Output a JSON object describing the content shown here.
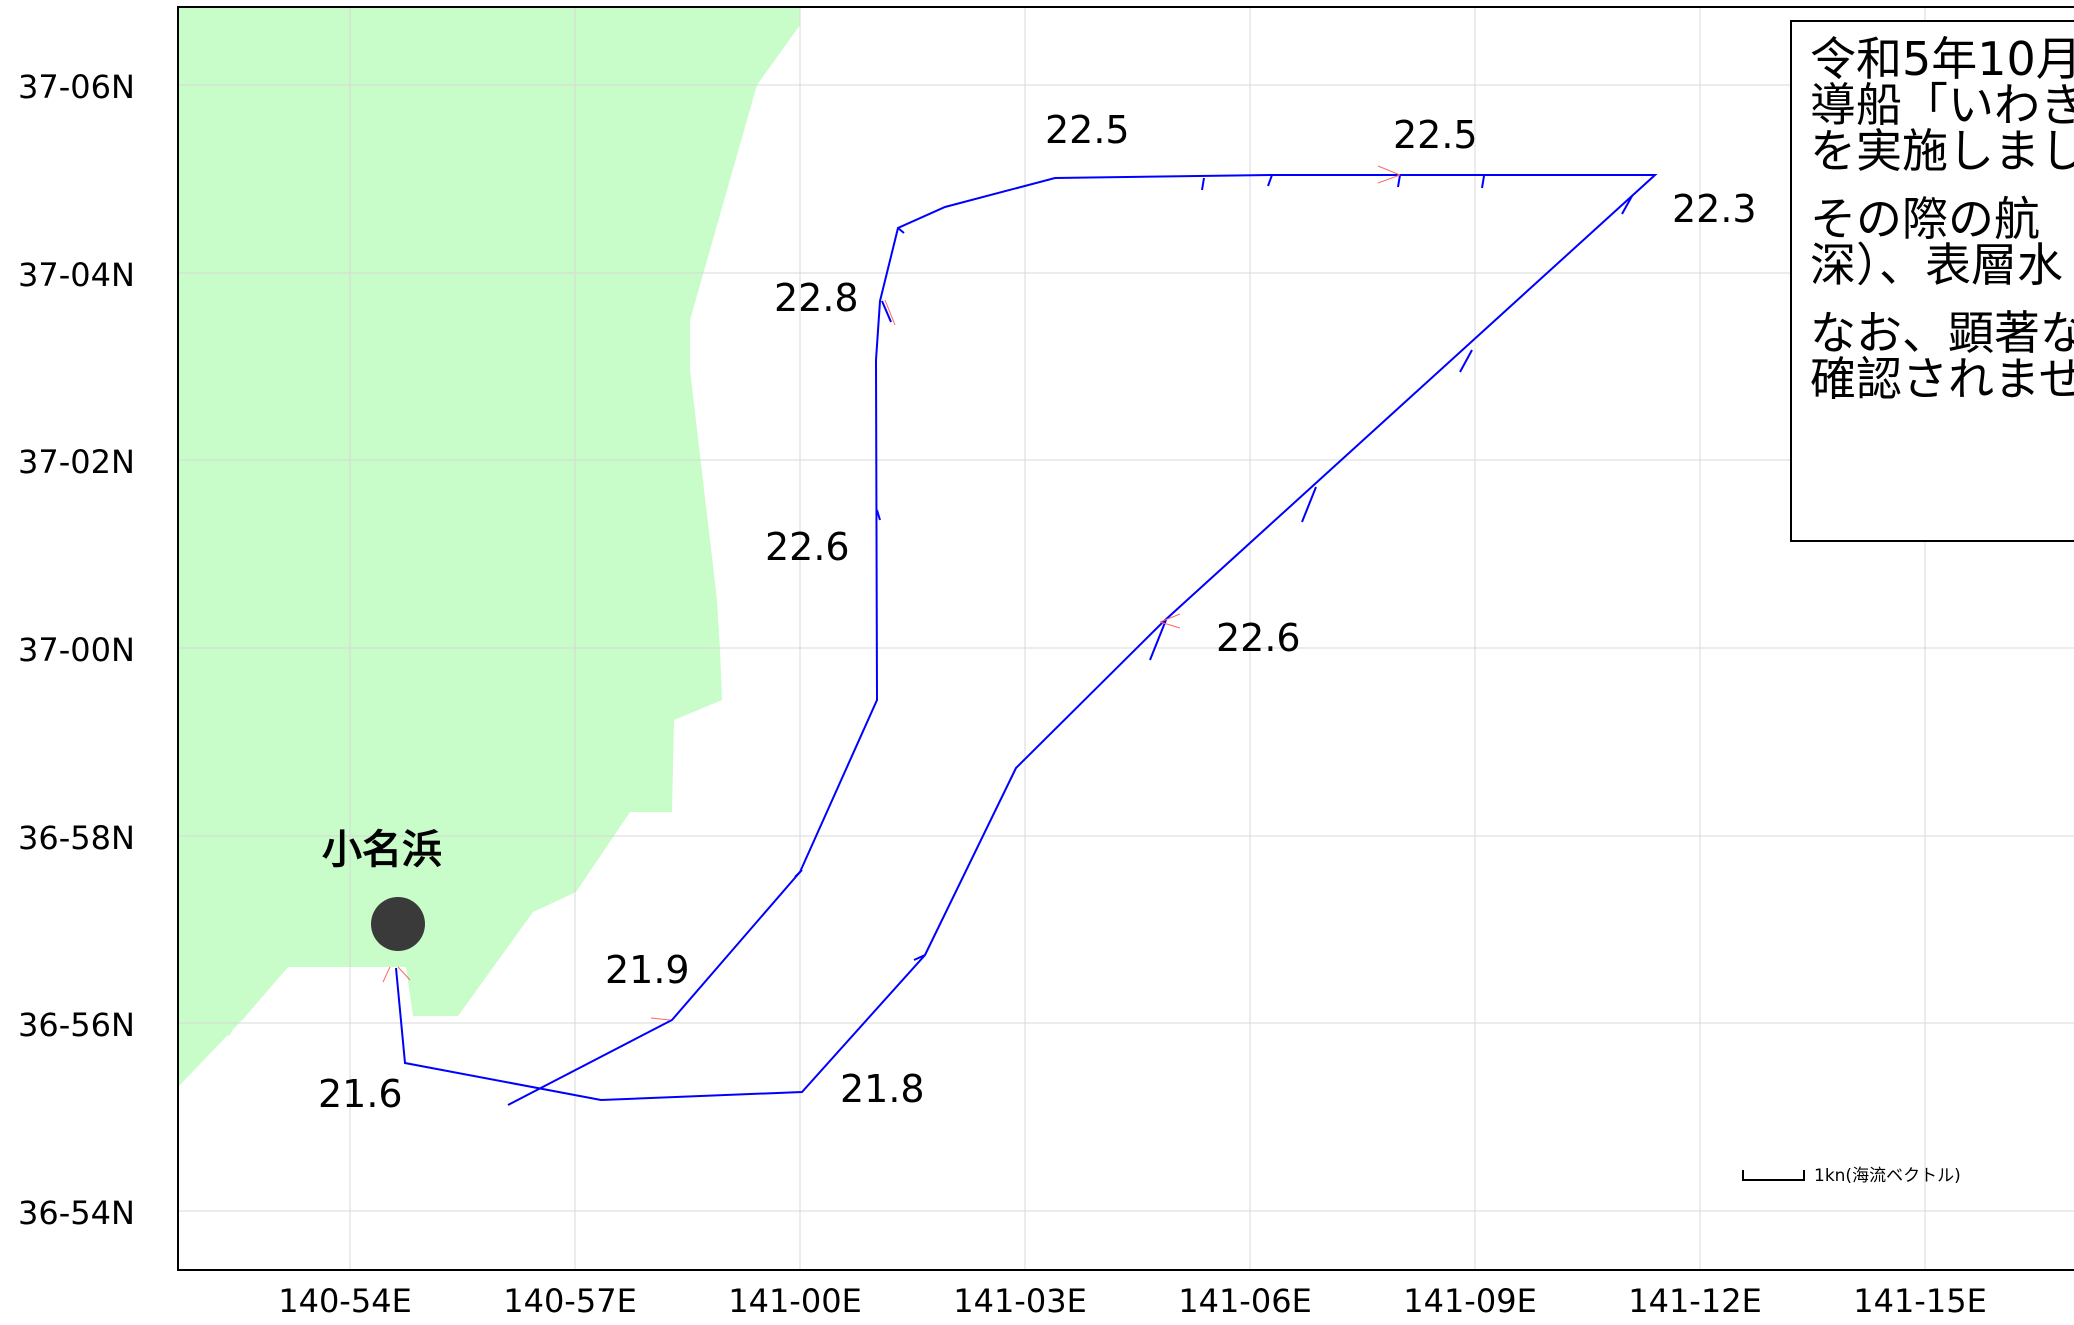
{
  "map": {
    "lat_labels": [
      "37-06N",
      "37-04N",
      "37-02N",
      "37-00N",
      "36-58N",
      "36-56N",
      "36-54N"
    ],
    "lon_labels": [
      "140-54E",
      "140-57E",
      "141-00E",
      "141-03E",
      "141-06E",
      "141-09E",
      "141-12E",
      "141-15E"
    ],
    "place": {
      "name": "小名浜"
    },
    "temperatures": [
      "22.5",
      "22.5",
      "22.3",
      "22.8",
      "22.6",
      "22.6",
      "21.9",
      "21.6",
      "21.8"
    ],
    "scale_label": "1kn(海流ベクトル)",
    "colors": {
      "land": "#c8fcc8",
      "track": "#0000ff",
      "grid": "#d8d8d8",
      "marker": "#3a3a3a",
      "current_vector": "#ff6666"
    }
  },
  "notice": {
    "paragraphs": [
      [
        "令和5年10月",
        "導船「いわき",
        "を実施しまし"
      ],
      [
        "その際の航",
        "深）、表層水"
      ],
      [
        "なお、顕著な",
        "確認されませ"
      ]
    ]
  }
}
